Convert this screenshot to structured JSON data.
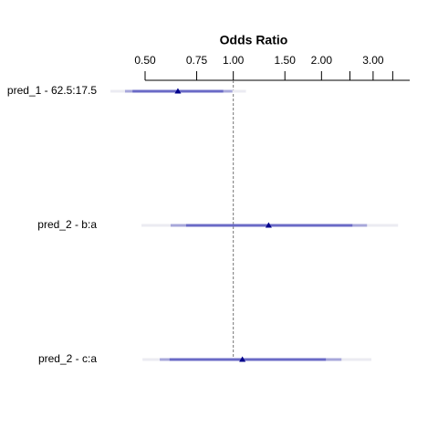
{
  "chart_data": {
    "type": "odds-ratio",
    "title": "Odds Ratio",
    "xlog": true,
    "xlim": [
      0.5,
      4
    ],
    "xticks": [
      {
        "value": 0.5,
        "label": "0.50"
      },
      0.75,
      {
        "value": 1,
        "label": "1.00"
      },
      {
        "value": 1.5,
        "label": "1.50"
      },
      {
        "value": 2,
        "label": "2.00"
      },
      {
        "value": 3,
        "label": "3.00"
      }
    ],
    "minor_xticks": [
      2.5,
      3.5
    ],
    "reference": 1,
    "interval_colors": [
      "#ebebf2",
      "#a7a7da",
      "#6a6ac6"
    ],
    "point_color": "#00008b",
    "rows": [
      {
        "label": "pred_1 - 62.5:17.5",
        "estimate": 0.647,
        "intervals": [
          [
            0.381,
            1.105
          ],
          [
            0.427,
            0.993
          ],
          [
            0.453,
            0.924
          ]
        ]
      },
      {
        "label": "pred_2 - b:a",
        "estimate": 1.32,
        "intervals": [
          [
            0.486,
            3.65
          ],
          [
            0.611,
            2.86
          ],
          [
            0.69,
            2.55
          ]
        ]
      },
      {
        "label": "pred_2 - c:a",
        "estimate": 1.074,
        "intervals": [
          [
            0.49,
            2.96
          ],
          [
            0.561,
            2.34
          ],
          [
            0.606,
            2.07
          ]
        ]
      }
    ]
  }
}
